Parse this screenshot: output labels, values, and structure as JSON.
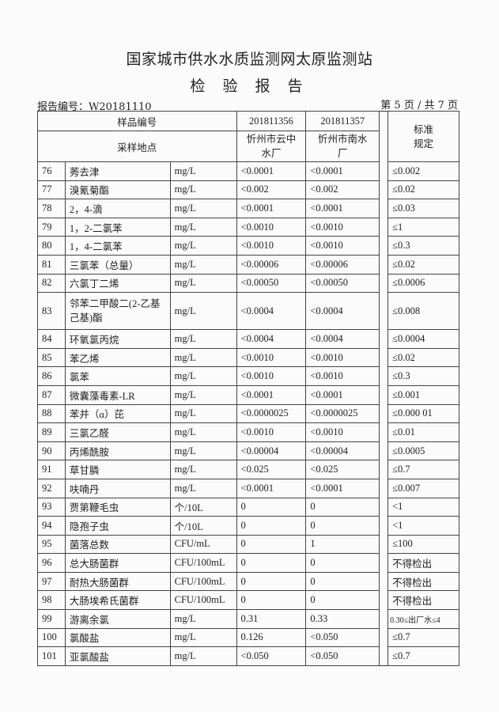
{
  "header": {
    "organization": "国家城市供水水质监测网太原监测站",
    "document_title": "检 验 报 告",
    "report_number": "报告编号：W20181110",
    "page_indicator": "第 5 页 / 共 7 页"
  },
  "table": {
    "sample_id_label": "样品编号",
    "sample_location_label": "采样地点",
    "standard_label": "标准规定",
    "samples": [
      {
        "id": "201811356",
        "location": "忻州市云中水厂"
      },
      {
        "id": "201811357",
        "location": "忻州市南水厂"
      }
    ],
    "rows": [
      {
        "no": "76",
        "item": "莠去津",
        "unit": "mg/L",
        "v1": "<0.0001",
        "v2": "<0.0001",
        "standard": "≤0.002"
      },
      {
        "no": "77",
        "item": "溴氰菊酯",
        "unit": "mg/L",
        "v1": "<0.002",
        "v2": "<0.002",
        "standard": "≤0.02"
      },
      {
        "no": "78",
        "item": "2，4-滴",
        "unit": "mg/L",
        "v1": "<0.0001",
        "v2": "<0.0001",
        "standard": "≤0.03"
      },
      {
        "no": "79",
        "item": "1，2-二氯苯",
        "unit": "mg/L",
        "v1": "<0.0010",
        "v2": "<0.0010",
        "standard": "≤1"
      },
      {
        "no": "80",
        "item": "1，4-二氯苯",
        "unit": "mg/L",
        "v1": "<0.0010",
        "v2": "<0.0010",
        "standard": "≤0.3"
      },
      {
        "no": "81",
        "item": "三氯苯（总量）",
        "unit": "mg/L",
        "v1": "<0.00006",
        "v2": "<0.00006",
        "standard": "≤0.02"
      },
      {
        "no": "82",
        "item": "六氯丁二烯",
        "unit": "mg/L",
        "v1": "<0.00050",
        "v2": "<0.00050",
        "standard": "≤0.0006"
      },
      {
        "no": "83",
        "item": "邻苯二甲酸二(2-乙基己基)酯",
        "unit": "mg/L",
        "v1": "<0.0004",
        "v2": "<0.0004",
        "standard": "≤0.008"
      },
      {
        "no": "84",
        "item": "环氧氯丙烷",
        "unit": "mg/L",
        "v1": "<0.0004",
        "v2": "<0.0004",
        "standard": "≤0.0004"
      },
      {
        "no": "85",
        "item": "苯乙烯",
        "unit": "mg/L",
        "v1": "<0.0010",
        "v2": "<0.0010",
        "standard": "≤0.02"
      },
      {
        "no": "86",
        "item": "氯苯",
        "unit": "mg/L",
        "v1": "<0.0010",
        "v2": "<0.0010",
        "standard": "≤0.3"
      },
      {
        "no": "87",
        "item": "微囊藻毒素-LR",
        "unit": "mg/L",
        "v1": "<0.0001",
        "v2": "<0.0001",
        "standard": "≤0.001"
      },
      {
        "no": "88",
        "item": "苯并（α）芘",
        "unit": "mg/L",
        "v1": "<0.0000025",
        "v2": "<0.0000025",
        "standard": "≤0.000 01"
      },
      {
        "no": "89",
        "item": "三氯乙醛",
        "unit": "mg/L",
        "v1": "<0.0010",
        "v2": "<0.0010",
        "standard": "≤0.01"
      },
      {
        "no": "90",
        "item": "丙烯酰胺",
        "unit": "mg/L",
        "v1": "<0.00004",
        "v2": "<0.00004",
        "standard": "≤0.0005"
      },
      {
        "no": "91",
        "item": "草甘膦",
        "unit": "mg/L",
        "v1": "<0.025",
        "v2": "<0.025",
        "standard": "≤0.7"
      },
      {
        "no": "92",
        "item": "呋喃丹",
        "unit": "mg/L",
        "v1": "<0.0001",
        "v2": "<0.0001",
        "standard": "≤0.007"
      },
      {
        "no": "93",
        "item": "贾第鞭毛虫",
        "unit": "个/10L",
        "v1": "0",
        "v2": "0",
        "standard": "<1"
      },
      {
        "no": "94",
        "item": "隐孢子虫",
        "unit": "个/10L",
        "v1": "0",
        "v2": "0",
        "standard": "<1"
      },
      {
        "no": "95",
        "item": "菌落总数",
        "unit": "CFU/mL",
        "v1": "0",
        "v2": "1",
        "standard": "≤100"
      },
      {
        "no": "96",
        "item": "总大肠菌群",
        "unit": "CFU/100mL",
        "v1": "0",
        "v2": "0",
        "standard": "不得检出"
      },
      {
        "no": "97",
        "item": "耐热大肠菌群",
        "unit": "CFU/100mL",
        "v1": "0",
        "v2": "0",
        "standard": "不得检出"
      },
      {
        "no": "98",
        "item": "大肠埃希氏菌群",
        "unit": "CFU/100mL",
        "v1": "0",
        "v2": "0",
        "standard": "不得检出"
      },
      {
        "no": "99",
        "item": "游离余氯",
        "unit": "mg/L",
        "v1": "0.31",
        "v2": "0.33",
        "standard": "0.30≤出厂水≤4"
      },
      {
        "no": "100",
        "item": "氯酸盐",
        "unit": "mg/L",
        "v1": "0.126",
        "v2": "<0.050",
        "standard": "≤0.7"
      },
      {
        "no": "101",
        "item": "亚氯酸盐",
        "unit": "mg/L",
        "v1": "<0.050",
        "v2": "<0.050",
        "standard": "≤0.7"
      }
    ]
  }
}
